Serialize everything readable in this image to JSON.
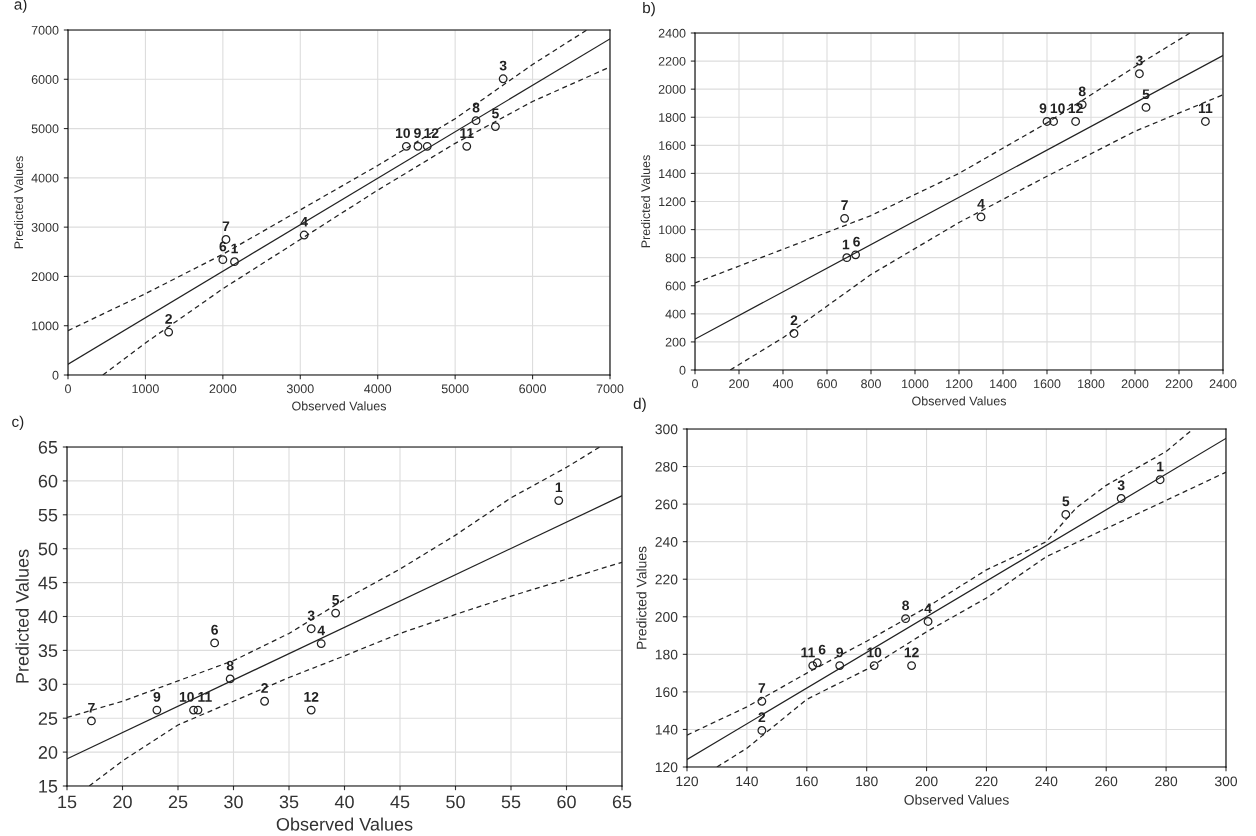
{
  "chart_data": [
    {
      "type": "scatter",
      "title": "a)",
      "xlabel": "Observed Values",
      "ylabel": "Predicted Values",
      "xlim": [
        0,
        7000
      ],
      "ylim": [
        0,
        7000
      ],
      "xticks": [
        0,
        1000,
        2000,
        3000,
        4000,
        5000,
        6000,
        7000
      ],
      "yticks": [
        0,
        1000,
        2000,
        3000,
        4000,
        5000,
        6000,
        7000
      ],
      "grid": true,
      "series": [
        {
          "marker": "circle",
          "color": "#222222",
          "x": [
            2150,
            1300,
            5620,
            3050,
            5520,
            2000,
            2040,
            5270,
            4520,
            4370,
            5150,
            4640
          ],
          "values": [
            2300,
            870,
            6010,
            2840,
            5040,
            2340,
            2750,
            5160,
            4640,
            4640,
            4640,
            4640
          ]
        },
        {
          "type": "line",
          "color": "#222222",
          "line_style": "solid",
          "x": [
            0,
            7000
          ],
          "values": [
            220,
            6820
          ]
        },
        {
          "type": "line",
          "color": "#222222",
          "line_style": "dashed",
          "x": [
            0,
            1000,
            2000,
            3000,
            4000,
            5000,
            6000,
            6700
          ],
          "values": [
            900,
            1650,
            2450,
            3350,
            4250,
            5200,
            6300,
            7000
          ]
        },
        {
          "type": "line",
          "color": "#222222",
          "line_style": "dashed",
          "x": [
            450,
            1000,
            2000,
            3000,
            4000,
            5000,
            6000,
            7000
          ],
          "values": [
            0,
            650,
            1750,
            2750,
            3750,
            4700,
            5550,
            6250
          ]
        }
      ],
      "annotations": [
        {
          "text": "1",
          "x": 2150,
          "y": 2300
        },
        {
          "text": "2",
          "x": 1300,
          "y": 870
        },
        {
          "text": "3",
          "x": 5620,
          "y": 6010
        },
        {
          "text": "4",
          "x": 3050,
          "y": 2840
        },
        {
          "text": "5",
          "x": 5520,
          "y": 5040
        },
        {
          "text": "6",
          "x": 2000,
          "y": 2340
        },
        {
          "text": "7",
          "x": 2040,
          "y": 2750
        },
        {
          "text": "8",
          "x": 5270,
          "y": 5160
        },
        {
          "text": "9",
          "x": 4520,
          "y": 4640
        },
        {
          "text": "10",
          "x": 4370,
          "y": 4640
        },
        {
          "text": "11",
          "x": 5150,
          "y": 4640
        },
        {
          "text": "12",
          "x": 4640,
          "y": 4640
        }
      ]
    },
    {
      "type": "scatter",
      "title": "b)",
      "xlabel": "Observed Values",
      "ylabel": "Predicted Values",
      "xlim": [
        0,
        2400
      ],
      "ylim": [
        0,
        2400
      ],
      "xticks": [
        0,
        200,
        400,
        600,
        800,
        1000,
        1200,
        1400,
        1600,
        1800,
        2000,
        2200,
        2400
      ],
      "yticks": [
        0,
        200,
        400,
        600,
        800,
        1000,
        1200,
        1400,
        1600,
        1800,
        2000,
        2200,
        2400
      ],
      "grid": true,
      "series": [
        {
          "marker": "circle",
          "color": "#222222",
          "x": [
            690,
            450,
            2020,
            1300,
            2050,
            730,
            680,
            1760,
            1600,
            1630,
            2320,
            1730
          ],
          "values": [
            800,
            260,
            2110,
            1090,
            1870,
            820,
            1080,
            1890,
            1770,
            1770,
            1770,
            1770
          ]
        },
        {
          "type": "line",
          "color": "#222222",
          "line_style": "solid",
          "x": [
            0,
            2400
          ],
          "values": [
            220,
            2240
          ]
        },
        {
          "type": "line",
          "color": "#222222",
          "line_style": "dashed",
          "x": [
            0,
            400,
            800,
            1200,
            1600,
            2000,
            2250
          ],
          "values": [
            620,
            860,
            1100,
            1400,
            1760,
            2160,
            2400
          ]
        },
        {
          "type": "line",
          "color": "#222222",
          "line_style": "dashed",
          "x": [
            160,
            400,
            800,
            1200,
            1600,
            2000,
            2400
          ],
          "values": [
            0,
            230,
            680,
            1050,
            1380,
            1700,
            1960
          ]
        }
      ],
      "annotations": [
        {
          "text": "1",
          "x": 690,
          "y": 800
        },
        {
          "text": "2",
          "x": 450,
          "y": 260
        },
        {
          "text": "3",
          "x": 2020,
          "y": 2110
        },
        {
          "text": "4",
          "x": 1300,
          "y": 1090
        },
        {
          "text": "5",
          "x": 2050,
          "y": 1870
        },
        {
          "text": "6",
          "x": 730,
          "y": 820
        },
        {
          "text": "7",
          "x": 680,
          "y": 1080
        },
        {
          "text": "8",
          "x": 1760,
          "y": 1890
        },
        {
          "text": "9",
          "x": 1600,
          "y": 1770
        },
        {
          "text": "10",
          "x": 1630,
          "y": 1770
        },
        {
          "text": "11",
          "x": 2320,
          "y": 1770
        },
        {
          "text": "12",
          "x": 1730,
          "y": 1770
        }
      ]
    },
    {
      "type": "scatter",
      "title": "c)",
      "xlabel": "Observed Values",
      "ylabel": "Predicted Values",
      "xlim": [
        15,
        65
      ],
      "ylim": [
        15,
        65
      ],
      "xticks": [
        15,
        20,
        25,
        30,
        35,
        40,
        45,
        50,
        55,
        60,
        65
      ],
      "yticks": [
        15,
        20,
        25,
        30,
        35,
        40,
        45,
        50,
        55,
        60,
        65
      ],
      "grid": true,
      "series": [
        {
          "marker": "circle",
          "color": "#222222",
          "x": [
            59.3,
            32.8,
            37.0,
            37.9,
            39.2,
            28.3,
            17.2,
            29.7,
            23.1,
            26.4,
            26.8,
            37.0
          ],
          "values": [
            57.1,
            27.5,
            38.2,
            36.0,
            40.5,
            36.1,
            24.6,
            30.8,
            26.2,
            26.2,
            26.2,
            26.2
          ]
        },
        {
          "type": "line",
          "color": "#222222",
          "line_style": "solid",
          "x": [
            15,
            65
          ],
          "values": [
            19.0,
            57.8
          ]
        },
        {
          "type": "line",
          "color": "#222222",
          "line_style": "dashed",
          "x": [
            15,
            20,
            25,
            30,
            35,
            40,
            45,
            50,
            55,
            60,
            63
          ],
          "values": [
            25.1,
            27.5,
            30.5,
            33.5,
            37.5,
            42.5,
            47,
            52,
            57.5,
            62,
            65
          ]
        },
        {
          "type": "line",
          "color": "#222222",
          "line_style": "dashed",
          "x": [
            17,
            20,
            25,
            30,
            35,
            40,
            45,
            50,
            55,
            60,
            65
          ],
          "values": [
            15,
            18.7,
            24,
            27.5,
            31,
            34.2,
            37.5,
            40.3,
            43,
            45.5,
            48
          ]
        }
      ],
      "annotations": [
        {
          "text": "1",
          "x": 59.3,
          "y": 57.1
        },
        {
          "text": "2",
          "x": 32.8,
          "y": 27.5
        },
        {
          "text": "3",
          "x": 37.0,
          "y": 38.2
        },
        {
          "text": "4",
          "x": 37.9,
          "y": 36.0
        },
        {
          "text": "5",
          "x": 39.2,
          "y": 40.5
        },
        {
          "text": "6",
          "x": 28.3,
          "y": 36.1
        },
        {
          "text": "7",
          "x": 17.2,
          "y": 24.6
        },
        {
          "text": "8",
          "x": 29.7,
          "y": 30.8
        },
        {
          "text": "9",
          "x": 23.1,
          "y": 26.2
        },
        {
          "text": "10",
          "x": 26.4,
          "y": 26.2
        },
        {
          "text": "11",
          "x": 26.8,
          "y": 26.2
        },
        {
          "text": "12",
          "x": 37.0,
          "y": 26.2
        }
      ]
    },
    {
      "type": "scatter",
      "title": "d)",
      "xlabel": "Observed Values",
      "ylabel": "Predicted Values",
      "xlim": [
        120,
        300
      ],
      "ylim": [
        120,
        300
      ],
      "xticks": [
        120,
        140,
        160,
        180,
        200,
        220,
        240,
        260,
        280,
        300
      ],
      "yticks": [
        120,
        140,
        160,
        180,
        200,
        220,
        240,
        260,
        280,
        300
      ],
      "grid": true,
      "series": [
        {
          "marker": "circle",
          "color": "#222222",
          "x": [
            278,
            145,
            265,
            200.5,
            246.5,
            163.5,
            145,
            193,
            171,
            182.5,
            162,
            195
          ],
          "values": [
            273,
            139.5,
            263,
            197.5,
            254.5,
            175.5,
            155,
            199,
            174,
            174,
            174,
            174
          ]
        },
        {
          "type": "line",
          "color": "#222222",
          "line_style": "solid",
          "x": [
            120,
            300
          ],
          "values": [
            124,
            295
          ]
        },
        {
          "type": "line",
          "color": "#222222",
          "line_style": "dashed",
          "x": [
            120,
            140,
            160,
            180,
            200,
            220,
            240,
            250,
            260,
            280,
            289
          ],
          "values": [
            137,
            152,
            170,
            187,
            205,
            225,
            240,
            258,
            270,
            288,
            300
          ]
        },
        {
          "type": "line",
          "color": "#222222",
          "line_style": "dashed",
          "x": [
            130,
            140,
            160,
            180,
            200,
            220,
            240,
            260,
            280,
            300
          ],
          "values": [
            120,
            130,
            156,
            172,
            192,
            210,
            232,
            247,
            262,
            277
          ]
        }
      ],
      "annotations": [
        {
          "text": "1",
          "x": 278,
          "y": 273
        },
        {
          "text": "2",
          "x": 145,
          "y": 139.5
        },
        {
          "text": "3",
          "x": 265,
          "y": 263
        },
        {
          "text": "4",
          "x": 200.5,
          "y": 197.5
        },
        {
          "text": "5",
          "x": 246.5,
          "y": 254.5
        },
        {
          "text": "6",
          "x": 163.5,
          "y": 175.5
        },
        {
          "text": "7",
          "x": 145,
          "y": 155
        },
        {
          "text": "8",
          "x": 193,
          "y": 199
        },
        {
          "text": "9",
          "x": 171,
          "y": 174
        },
        {
          "text": "10",
          "x": 182.5,
          "y": 174
        },
        {
          "text": "11",
          "x": 162,
          "y": 174
        },
        {
          "text": "12",
          "x": 195,
          "y": 174
        }
      ]
    }
  ]
}
